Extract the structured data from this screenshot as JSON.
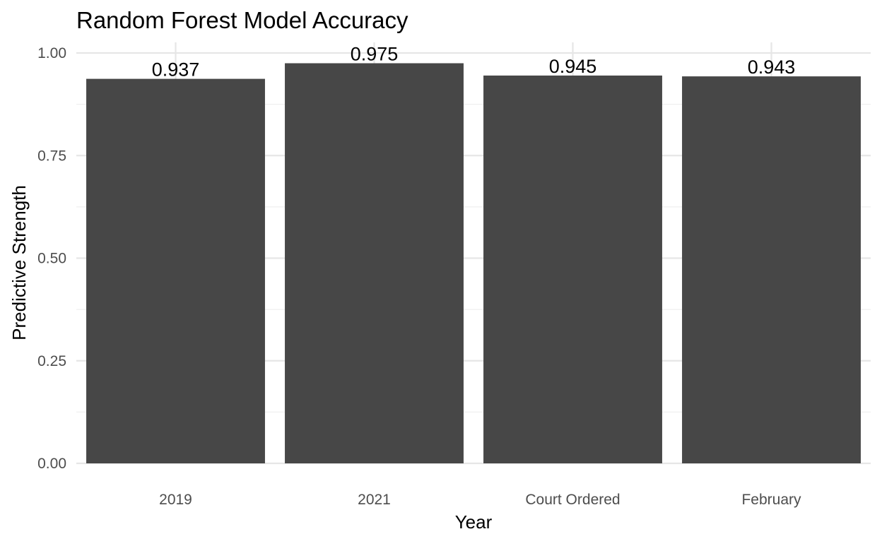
{
  "chart_data": {
    "type": "bar",
    "title": "Random Forest Model Accuracy",
    "xlabel": "Year",
    "ylabel": "Predictive Strength",
    "categories": [
      "2019",
      "2021",
      "Court Ordered",
      "February"
    ],
    "values": [
      0.937,
      0.975,
      0.945,
      0.943
    ],
    "value_labels": [
      "0.937",
      "0.975",
      "0.945",
      "0.943"
    ],
    "ylim": [
      0,
      1.0
    ],
    "yticks": [
      0,
      0.25,
      0.5,
      0.75,
      1.0
    ],
    "ytick_labels": [
      "0.00",
      "0.25",
      "0.50",
      "0.75",
      "1.00"
    ],
    "grid": true,
    "legend": "none",
    "bar_color": "#474747"
  }
}
